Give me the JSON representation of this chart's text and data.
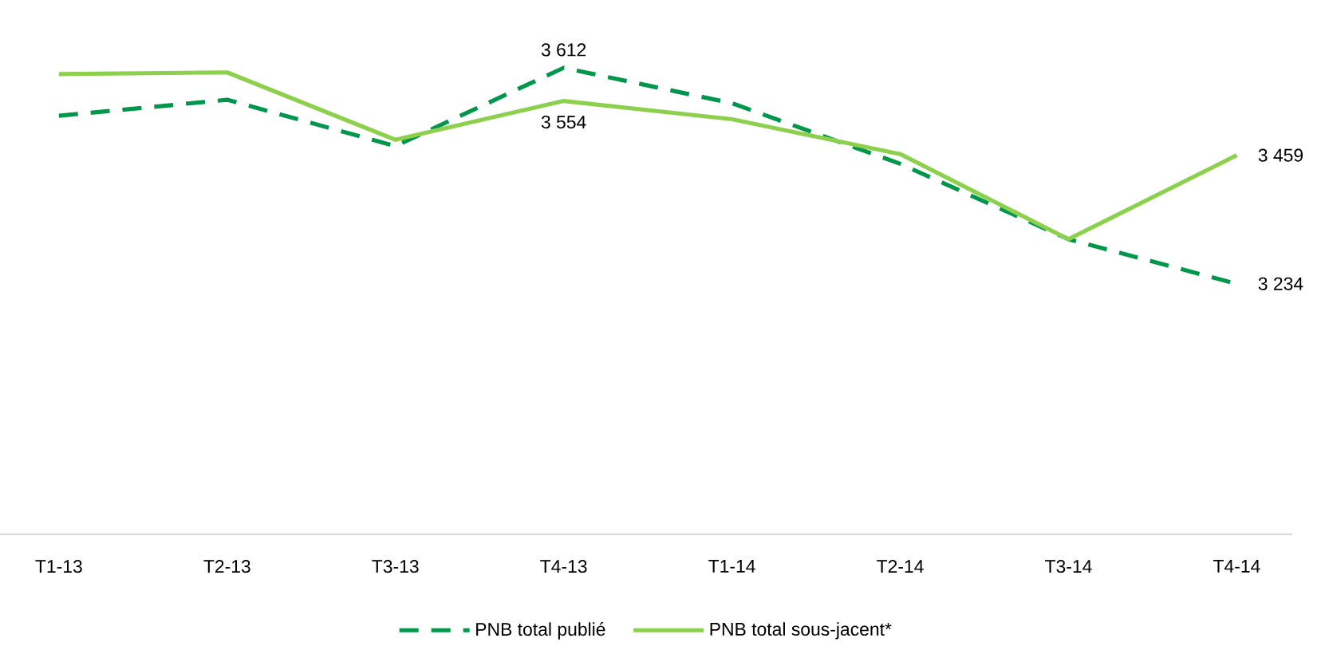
{
  "chart_data": {
    "type": "line",
    "categories": [
      "T1-13",
      "T2-13",
      "T3-13",
      "T4-13",
      "T1-14",
      "T2-14",
      "T3-14",
      "T4-14"
    ],
    "legend": "bottom",
    "grid": false,
    "tick_labels": "x",
    "series": [
      {
        "name": "PNB total publié",
        "color": "#00964b",
        "line_style": "dashed",
        "values": [
          3528,
          3556,
          3475,
          3612,
          3550,
          3444,
          3312,
          3234
        ],
        "value_labels": [
          null,
          null,
          null,
          "3 612",
          null,
          null,
          null,
          "3 234"
        ]
      },
      {
        "name": "PNB total sous-jacent*",
        "color": "#8dd04e",
        "line_style": "solid",
        "values": [
          3601,
          3604,
          3486,
          3554,
          3522,
          3461,
          3312,
          3459
        ],
        "value_labels": [
          null,
          null,
          null,
          "3 554",
          null,
          null,
          null,
          "3 459"
        ]
      }
    ]
  }
}
